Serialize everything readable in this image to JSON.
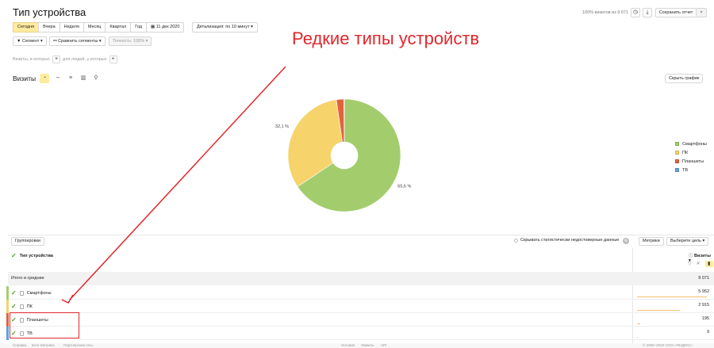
{
  "header": {
    "title": "Тип устройства",
    "visits_percent": "100% визитов из 9 071",
    "save_label": "Сохранить отчет"
  },
  "period": {
    "tabs": [
      "Сегодня",
      "Вчера",
      "Неделя",
      "Месяц",
      "Квартал",
      "Год"
    ],
    "active_index": 0,
    "date": "11 дек 2020",
    "detail": "Детализация: по 10 минут"
  },
  "segments": {
    "segment_label": "Сегмент",
    "compare_label": "Сравнить сегменты",
    "accuracy_label": "Точность: 100%"
  },
  "filters": {
    "visits_which": "Визиты, в которых",
    "people_which": "для людей, у которых"
  },
  "chart_section": {
    "label": "Визиты",
    "hide_label": "Скрыть график"
  },
  "annotation": "Редкие типы устройств",
  "chart_data": {
    "type": "pie",
    "categories": [
      "Смартфоны",
      "ПК",
      "Планшеты",
      "ТВ"
    ],
    "values": [
      5952,
      2915,
      195,
      9
    ],
    "colors": [
      "#a3cd6d",
      "#f7d36b",
      "#e2623f",
      "#64a0dc"
    ],
    "slice_labels": [
      "65,6 %",
      "32,1 %",
      "",
      ""
    ],
    "legend_position": "right"
  },
  "table": {
    "group_label": "Группировки",
    "hide_unreliable": "Скрывать статистически недостоверные данные",
    "metrics_label": "Метрики",
    "goal_label": "Выберите цель",
    "dimension_header": "Тип устройства",
    "metric_header": "Визиты",
    "totals_label": "Итого и средние",
    "totals_value": "9 071",
    "rows": [
      {
        "name": "Смартфоны",
        "value": "5 952"
      },
      {
        "name": "ПК",
        "value": "2 915"
      },
      {
        "name": "Планшеты",
        "value": "195"
      },
      {
        "name": "ТВ",
        "value": "9"
      }
    ]
  },
  "footer": {
    "left": [
      "Справка",
      "Блог Метрики",
      "Партнерская сеть"
    ],
    "mid": [
      "Условия",
      "Лимиты",
      "API"
    ],
    "right": "© 2008–2020 ООО «ЯНДЕКС»"
  },
  "icons": {
    "clock": "clock-icon",
    "download": "download-icon",
    "calendar": "calendar-icon"
  }
}
